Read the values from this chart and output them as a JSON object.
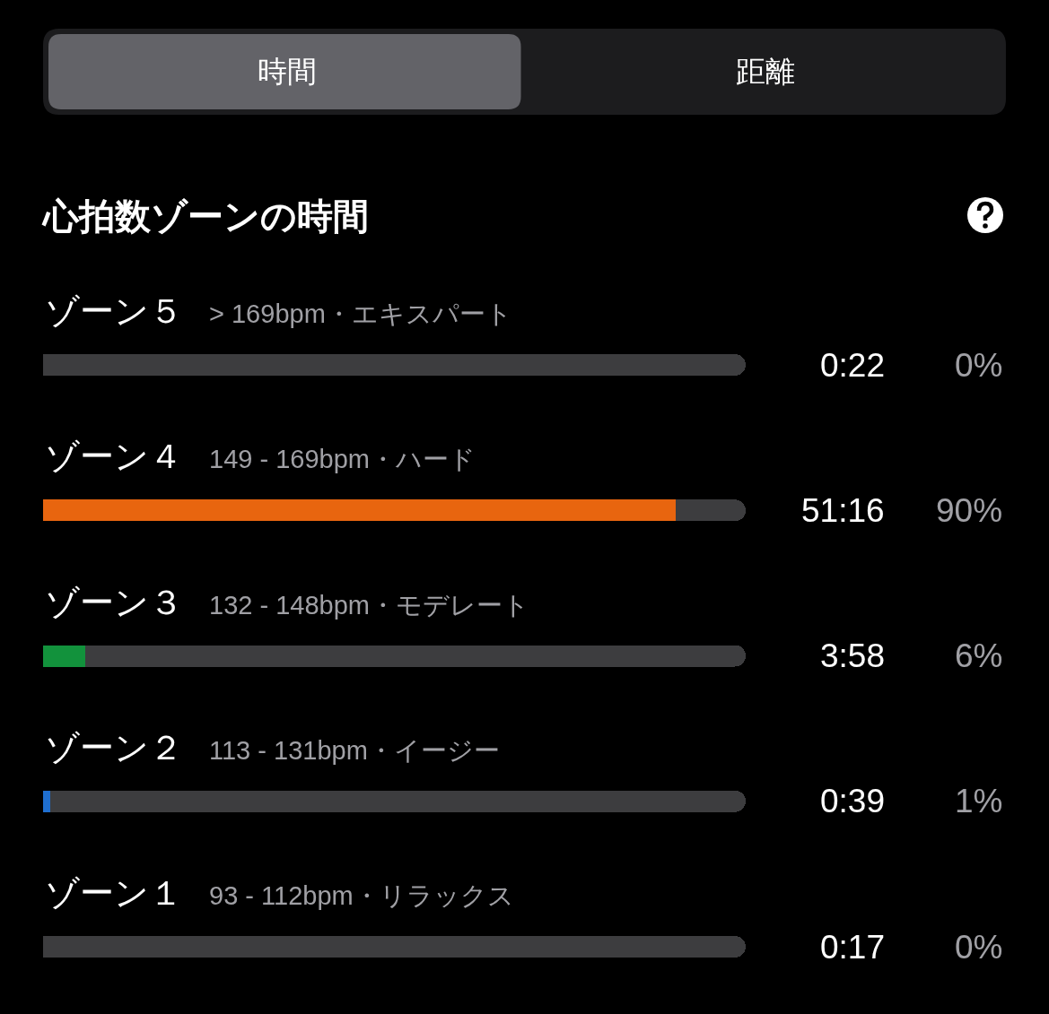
{
  "chart_data": {
    "type": "bar",
    "orientation": "horizontal",
    "stacked": true,
    "title": "心拍数ゾーンの時間",
    "annotations": [
      "時間",
      "距離",
      "0:22",
      "51:16",
      "3:58",
      "0:39",
      "0:17"
    ],
    "categories": [
      "ゾーン５",
      "ゾーン４",
      "ゾーン３",
      "ゾーン２",
      "ゾーン１"
    ],
    "y2_categories": [
      "> 169bpm・エキスパート",
      "149 - 169bpm・ハード",
      "132 - 148bpm・モデレート",
      "113 - 131bpm・イージー",
      "93 - 112bpm・リラックス"
    ],
    "series": [
      {
        "colors": [
          "#e0322c",
          "#e8650f",
          "#12923c",
          "#1f6fd1",
          "#8e8e93"
        ],
        "values": [
          0,
          90,
          6,
          1,
          0
        ],
        "value_labels": [
          "0%",
          "90%",
          "6%",
          "1%",
          "0%"
        ]
      },
      {
        "color": "#3d3d3f",
        "values": [
          100,
          10,
          94,
          99,
          100
        ]
      }
    ],
    "xlim": [
      0,
      100
    ],
    "tick_labels": "y"
  }
}
